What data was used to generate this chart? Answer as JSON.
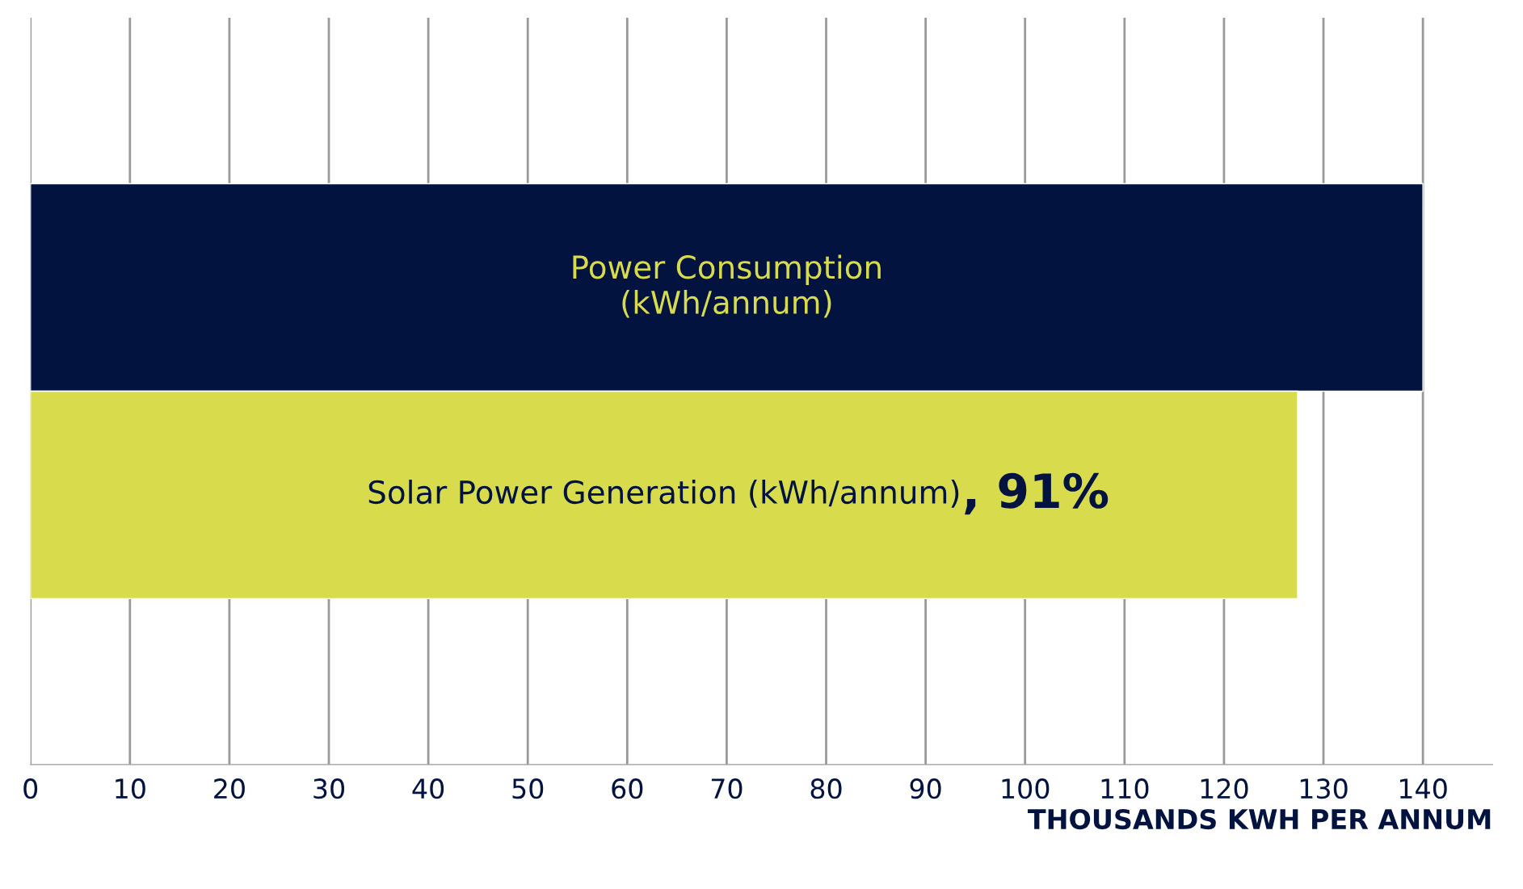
{
  "chart_data": {
    "type": "bar",
    "orientation": "horizontal",
    "categories": [
      "Power Consumption\n(kWh/annum)",
      "Solar Power Generation (kWh/annum)"
    ],
    "values": [
      140,
      127.4
    ],
    "colors": [
      "#021340",
      "#d8dc4c"
    ],
    "xlabel": "THOUSANDS KWH PER ANNUM",
    "xlim": [
      0,
      147
    ],
    "xticks": [
      0,
      10,
      20,
      30,
      40,
      50,
      60,
      70,
      80,
      90,
      100,
      110,
      120,
      130,
      140
    ],
    "grid": "x",
    "annotations": [
      ", 91%"
    ],
    "legend": false
  }
}
